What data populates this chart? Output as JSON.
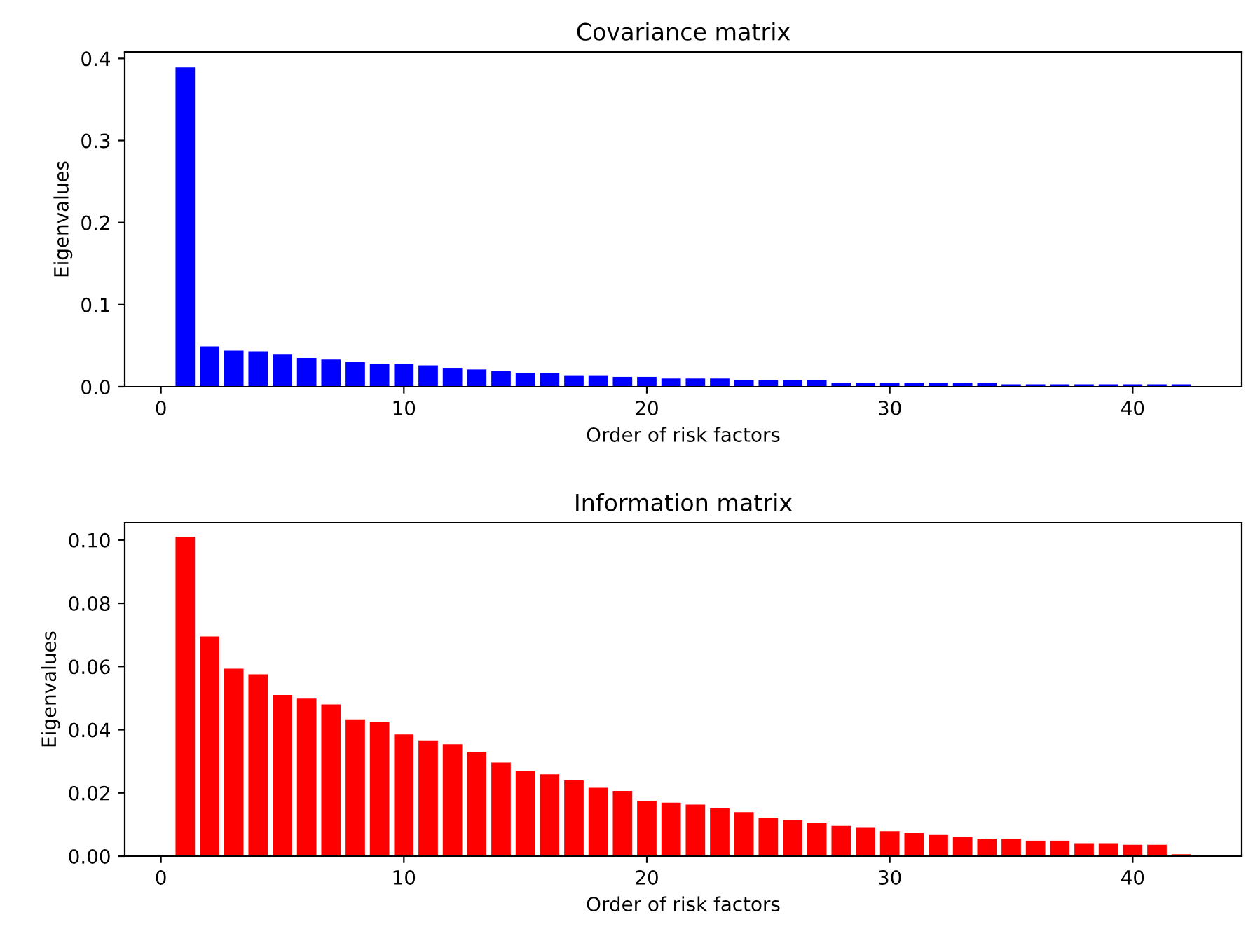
{
  "chart_data": [
    {
      "type": "bar",
      "title": "Covariance matrix",
      "xlabel": "Order of risk factors",
      "ylabel": "Eigenvalues",
      "x": [
        1,
        2,
        3,
        4,
        5,
        6,
        7,
        8,
        9,
        10,
        11,
        12,
        13,
        14,
        15,
        16,
        17,
        18,
        19,
        20,
        21,
        22,
        23,
        24,
        25,
        26,
        27,
        28,
        29,
        30,
        31,
        32,
        33,
        34,
        35,
        36,
        37,
        38,
        39,
        40,
        41,
        42
      ],
      "values": [
        0.389,
        0.049,
        0.044,
        0.043,
        0.04,
        0.035,
        0.033,
        0.03,
        0.028,
        0.028,
        0.026,
        0.023,
        0.021,
        0.019,
        0.017,
        0.017,
        0.014,
        0.014,
        0.012,
        0.012,
        0.01,
        0.01,
        0.01,
        0.008,
        0.008,
        0.008,
        0.008,
        0.005,
        0.005,
        0.005,
        0.005,
        0.005,
        0.005,
        0.005,
        0.003,
        0.003,
        0.003,
        0.003,
        0.003,
        0.003,
        0.003,
        0.003
      ],
      "color": "#0000ff",
      "xlim": [
        -1.49,
        44.49
      ],
      "xticks": [
        0,
        10,
        20,
        30,
        40
      ],
      "ylim": [
        0,
        0.408
      ],
      "yticks": [
        {
          "value": 0,
          "label": "0.0"
        },
        0.1,
        0.2,
        0.3,
        0.4
      ],
      "grid": false
    },
    {
      "type": "bar",
      "title": "Information matrix",
      "xlabel": "Order of risk factors",
      "ylabel": "Eigenvalues",
      "x": [
        1,
        2,
        3,
        4,
        5,
        6,
        7,
        8,
        9,
        10,
        11,
        12,
        13,
        14,
        15,
        16,
        17,
        18,
        19,
        20,
        21,
        22,
        23,
        24,
        25,
        26,
        27,
        28,
        29,
        30,
        31,
        32,
        33,
        34,
        35,
        36,
        37,
        38,
        39,
        40,
        41,
        42
      ],
      "values": [
        0.101,
        0.0695,
        0.0593,
        0.0575,
        0.051,
        0.0498,
        0.048,
        0.0433,
        0.0425,
        0.0385,
        0.0366,
        0.0354,
        0.033,
        0.0296,
        0.027,
        0.0259,
        0.024,
        0.0216,
        0.0206,
        0.0175,
        0.0169,
        0.0163,
        0.0151,
        0.0139,
        0.0121,
        0.0114,
        0.0104,
        0.0096,
        0.009,
        0.0079,
        0.0073,
        0.0067,
        0.0061,
        0.0055,
        0.0055,
        0.0049,
        0.0049,
        0.0041,
        0.0041,
        0.0036,
        0.0036,
        0.0006
      ],
      "color": "#ff0000",
      "xlim": [
        -1.49,
        44.49
      ],
      "xticks": [
        0,
        10,
        20,
        30,
        40
      ],
      "ylim": [
        0,
        0.1055
      ],
      "yticks": [
        {
          "value": 0,
          "label": "0.00"
        },
        {
          "value": 0.02,
          "label": "0.02"
        },
        {
          "value": 0.04,
          "label": "0.04"
        },
        {
          "value": 0.06,
          "label": "0.06"
        },
        {
          "value": 0.08,
          "label": "0.08"
        },
        {
          "value": 0.1,
          "label": "0.10"
        }
      ],
      "grid": false
    }
  ]
}
